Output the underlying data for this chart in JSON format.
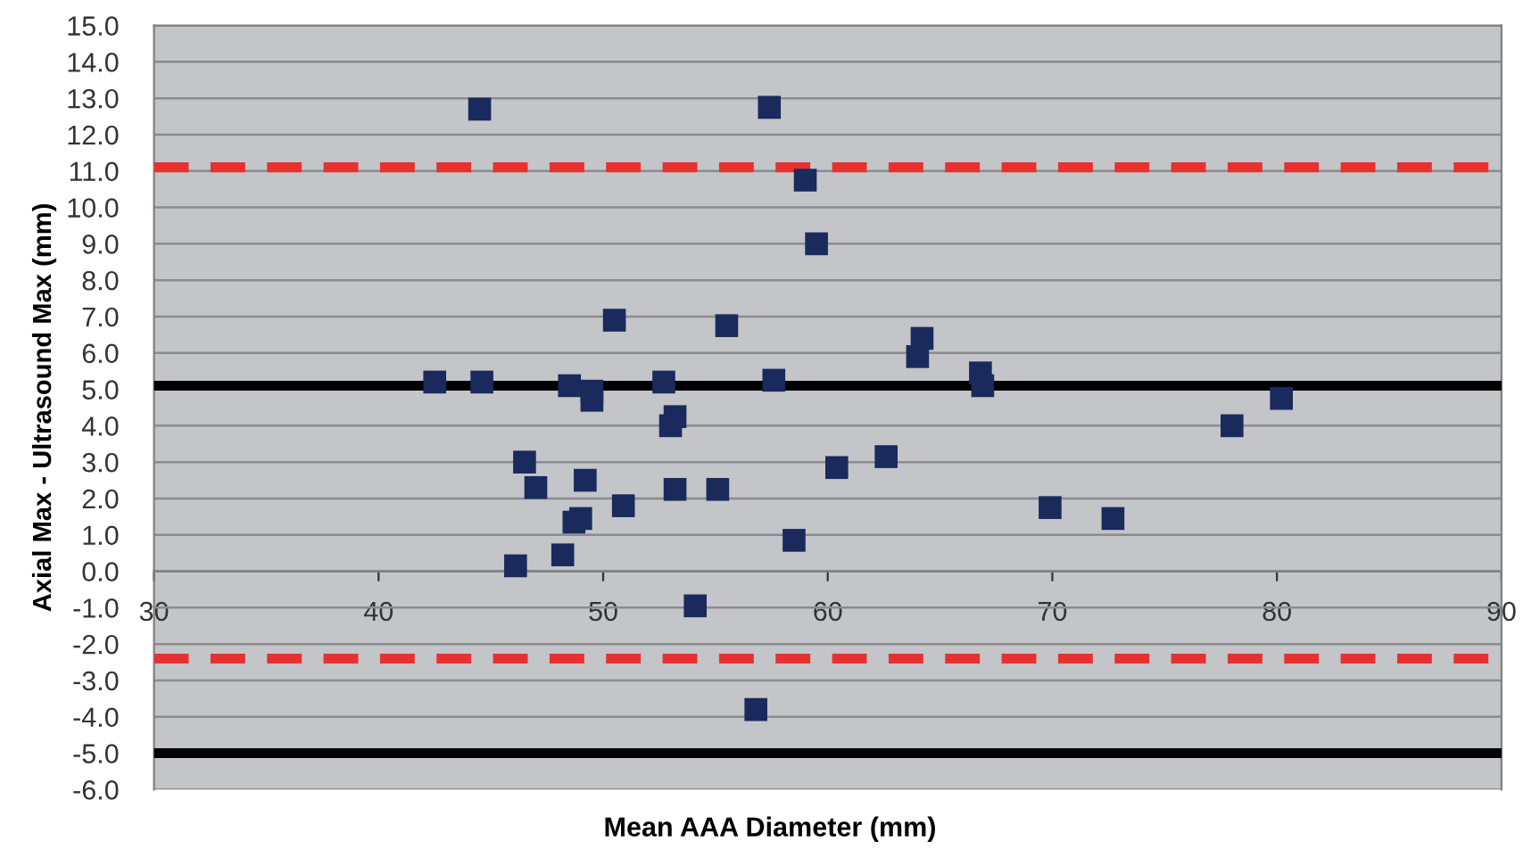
{
  "chart_data": {
    "type": "scatter",
    "xlabel": "Mean AAA Diameter (mm)",
    "ylabel": "Axial Max - Ultrasound Max (mm)",
    "x": [
      42.5,
      44.6,
      44.5,
      46.5,
      47.0,
      46.1,
      48.2,
      48.5,
      49.5,
      49.5,
      49.2,
      48.7,
      49.0,
      50.5,
      50.9,
      52.7,
      53.0,
      53.2,
      53.2,
      54.1,
      55.1,
      55.5,
      56.8,
      57.4,
      57.6,
      58.5,
      59.0,
      59.5,
      60.4,
      62.6,
      64.0,
      64.2,
      66.8,
      66.9,
      69.9,
      72.7,
      78.0,
      80.2
    ],
    "series": [
      {
        "color": "#1b2a5c",
        "values": [
          5.2,
          5.2,
          12.7,
          3.0,
          2.3,
          0.15,
          0.45,
          5.1,
          4.95,
          4.7,
          2.5,
          1.35,
          1.45,
          6.9,
          1.8,
          5.2,
          4.0,
          4.25,
          2.25,
          -0.95,
          2.25,
          6.75,
          -3.8,
          12.75,
          5.25,
          0.85,
          10.75,
          9.0,
          2.85,
          3.15,
          5.9,
          6.4,
          5.45,
          5.1,
          1.75,
          1.45,
          4.0,
          4.75
        ]
      }
    ],
    "marker": "square",
    "xlim": [
      30,
      90
    ],
    "xticks": [
      30,
      40,
      50,
      60,
      70,
      80,
      90
    ],
    "ylim": [
      -6,
      15
    ],
    "yticks": [
      {
        "value": -6,
        "label": "-6.0"
      },
      {
        "value": -5,
        "label": "-5.0"
      },
      {
        "value": -4,
        "label": "-4.0"
      },
      {
        "value": -3,
        "label": "-3.0"
      },
      {
        "value": -2,
        "label": "-2.0"
      },
      {
        "value": -1,
        "label": "-1.0"
      },
      {
        "value": 0,
        "label": "0.0"
      },
      {
        "value": 1,
        "label": "1.0"
      },
      {
        "value": 2,
        "label": "2.0"
      },
      {
        "value": 3,
        "label": "3.0"
      },
      {
        "value": 4,
        "label": "4.0"
      },
      {
        "value": 5,
        "label": "5.0"
      },
      {
        "value": 6,
        "label": "6.0"
      },
      {
        "value": 7,
        "label": "7.0"
      },
      {
        "value": 8,
        "label": "8.0"
      },
      {
        "value": 9,
        "label": "9.0"
      },
      {
        "value": 10,
        "label": "10.0"
      },
      {
        "value": 11,
        "label": "11.0"
      },
      {
        "value": 12,
        "label": "12.0"
      },
      {
        "value": 13,
        "label": "13.0"
      },
      {
        "value": 14,
        "label": "14.0"
      },
      {
        "value": 15,
        "label": "15.0"
      }
    ],
    "grid": "y",
    "ref_lines": [
      {
        "axis": "y",
        "value": 5.1,
        "color": "#000000",
        "line_style": "solid"
      },
      {
        "axis": "y",
        "value": -5.0,
        "color": "#000000",
        "line_style": "solid"
      },
      {
        "axis": "y",
        "value": 11.1,
        "color": "#e8312f",
        "line_style": "dashed"
      },
      {
        "axis": "y",
        "value": -2.4,
        "color": "#e8312f",
        "line_style": "dashed"
      }
    ]
  }
}
